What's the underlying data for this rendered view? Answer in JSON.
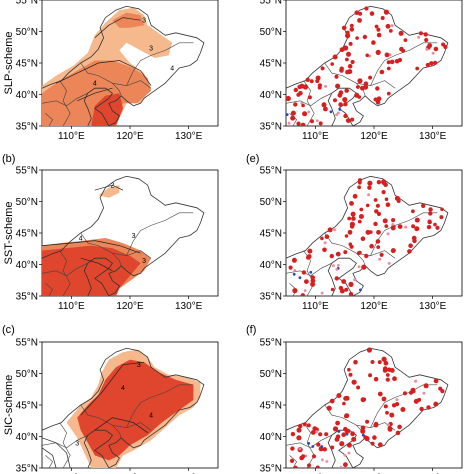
{
  "row_labels": [
    "SLP-scheme",
    "SST-scheme",
    "SIC-scheme"
  ],
  "panel_labels": [
    "(b)",
    "(e)",
    "(c)",
    "(f)"
  ],
  "lat_ticks": [
    "35°N",
    "40°N",
    "45°N",
    "50°N",
    "55°N"
  ],
  "lon_ticks": [
    "110°E",
    "120°E",
    "130°E"
  ],
  "contour_labels": {
    "slp": [
      "3",
      "4",
      "4",
      "3"
    ],
    "sst": [
      "3",
      "3",
      "4",
      "2"
    ],
    "sic": [
      "3",
      "4",
      "4",
      "3"
    ]
  },
  "colors": {
    "light": "#f5b98d",
    "mid": "#ec8557",
    "strong": "#e0452d",
    "station_red": "#d62020",
    "station_pink": "#f08aa0",
    "station_blue": "#2844c8"
  }
}
